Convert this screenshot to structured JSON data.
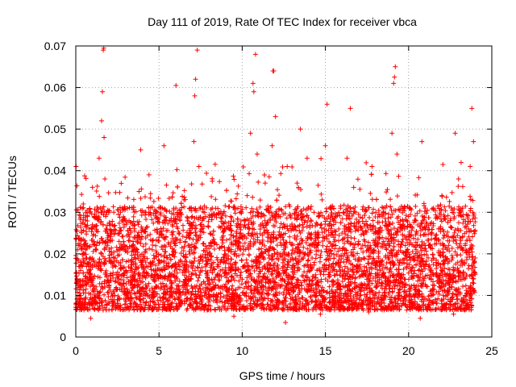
{
  "chart_data": {
    "type": "scatter",
    "title": "Day 111 of 2019, Rate Of TEC Index for receiver vbca",
    "xlabel": "GPS time / hours",
    "ylabel": "ROTI / TECUs",
    "xlim": [
      0,
      25
    ],
    "ylim": [
      0,
      0.07
    ],
    "x_ticks": [
      0,
      5,
      10,
      15,
      20,
      25
    ],
    "x_tick_labels": [
      "0",
      "5",
      "10",
      "15",
      "20",
      "25"
    ],
    "y_ticks": [
      0,
      0.01,
      0.02,
      0.03,
      0.04,
      0.05,
      0.06,
      0.07
    ],
    "y_tick_labels": [
      "0",
      "0.01",
      "0.02",
      "0.03",
      "0.04",
      "0.05",
      "0.06",
      "0.07"
    ],
    "grid": true,
    "marker": "plus",
    "color": "#ff0000",
    "x_data_range": [
      0,
      24
    ],
    "series": [
      {
        "x": [
          0.05,
          0.15,
          0.3,
          0.45,
          0.6,
          0.8,
          1.0,
          1.2,
          1.4,
          1.55,
          1.6,
          1.65,
          1.7,
          1.75,
          1.8,
          1.9,
          2.0,
          2.2,
          2.4,
          2.6,
          2.8,
          3.0,
          3.2,
          3.4,
          3.6,
          3.8,
          3.9,
          4.0,
          4.2,
          4.4,
          4.6,
          4.8,
          5.0,
          5.2,
          5.3,
          5.5,
          5.8,
          6.0,
          6.2,
          6.5,
          6.8,
          7.0,
          7.1,
          7.2,
          7.3,
          7.4,
          7.6,
          7.8,
          8.0,
          8.2,
          8.5,
          8.8,
          9.0,
          9.3,
          9.6,
          9.9,
          10.1,
          10.3,
          10.5,
          10.7,
          10.8,
          10.9,
          11.1,
          11.3,
          11.6,
          11.8,
          11.9,
          12.0,
          12.2,
          12.5,
          12.8,
          13.0,
          13.3,
          13.5,
          13.7,
          13.9,
          14.0,
          14.2,
          14.5,
          14.8,
          15.0,
          15.1,
          15.3,
          15.5,
          15.8,
          16.0,
          16.3,
          16.5,
          16.7,
          17.0,
          17.3,
          17.5,
          17.8,
          18.0,
          18.3,
          18.5,
          18.8,
          19.0,
          19.1,
          19.2,
          19.3,
          19.5,
          19.8,
          20.0,
          20.3,
          20.5,
          20.8,
          21.0,
          21.2,
          21.5,
          21.8,
          22.0,
          22.3,
          22.5,
          22.8,
          23.0,
          23.2,
          23.4,
          23.6,
          23.7,
          23.8,
          23.9,
          24.0,
          0.2,
          1.3,
          2.5,
          4.1,
          6.3,
          8.7,
          11.4,
          13.2,
          16.2,
          18.6,
          21.3,
          23.3,
          0.9,
          3.5,
          5.6,
          9.5,
          12.6,
          14.7,
          17.6,
          20.7,
          22.7,
          7.15,
          10.65,
          11.85,
          19.15,
          1.68,
          6.02,
          8.45
        ],
        "y": [
          0.0155,
          0.022,
          0.018,
          0.032,
          0.014,
          0.026,
          0.036,
          0.021,
          0.043,
          0.052,
          0.059,
          0.069,
          0.048,
          0.038,
          0.029,
          0.025,
          0.019,
          0.027,
          0.017,
          0.023,
          0.031,
          0.016,
          0.028,
          0.022,
          0.019,
          0.035,
          0.045,
          0.026,
          0.018,
          0.039,
          0.021,
          0.016,
          0.024,
          0.031,
          0.046,
          0.019,
          0.027,
          0.022,
          0.018,
          0.033,
          0.024,
          0.029,
          0.047,
          0.062,
          0.069,
          0.041,
          0.028,
          0.019,
          0.022,
          0.031,
          0.017,
          0.024,
          0.02,
          0.029,
          0.016,
          0.025,
          0.021,
          0.034,
          0.049,
          0.059,
          0.068,
          0.044,
          0.027,
          0.019,
          0.024,
          0.046,
          0.064,
          0.053,
          0.029,
          0.021,
          0.018,
          0.026,
          0.037,
          0.05,
          0.029,
          0.043,
          0.025,
          0.019,
          0.022,
          0.033,
          0.046,
          0.056,
          0.031,
          0.024,
          0.018,
          0.025,
          0.043,
          0.055,
          0.036,
          0.023,
          0.019,
          0.027,
          0.041,
          0.025,
          0.018,
          0.031,
          0.022,
          0.049,
          0.061,
          0.065,
          0.044,
          0.028,
          0.022,
          0.029,
          0.019,
          0.025,
          0.047,
          0.031,
          0.022,
          0.019,
          0.026,
          0.034,
          0.021,
          0.028,
          0.049,
          0.038,
          0.029,
          0.022,
          0.026,
          0.041,
          0.055,
          0.047,
          0.019,
          0.008,
          0.011,
          0.009,
          0.0105,
          0.0085,
          0.0095,
          0.012,
          0.009,
          0.0105,
          0.0095,
          0.011,
          0.0085,
          0.0045,
          0.0065,
          0.007,
          0.005,
          0.0035,
          0.0055,
          0.006,
          0.0045,
          0.0055,
          0.058,
          0.061,
          0.064,
          0.0625,
          0.0695,
          0.0605,
          0.0295
        ]
      }
    ]
  }
}
